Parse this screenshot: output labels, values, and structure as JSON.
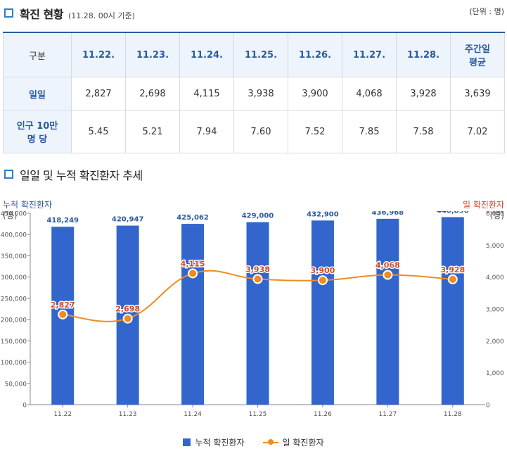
{
  "status": {
    "title": "확진 현황",
    "subtitle": "(11.28. 00시 기준)",
    "unit": "(단위 : 명)",
    "columns": [
      "구분",
      "11.22.",
      "11.23.",
      "11.24.",
      "11.25.",
      "11.26.",
      "11.27.",
      "11.28.",
      "주간일\n평균"
    ],
    "rows": [
      {
        "label": "일일",
        "values": [
          "2,827",
          "2,698",
          "4,115",
          "3,938",
          "3,900",
          "4,068",
          "3,928",
          "3,639"
        ]
      },
      {
        "label": "인구 10만\n명 당",
        "values": [
          "5.45",
          "5.21",
          "7.94",
          "7.60",
          "7.52",
          "7.85",
          "7.58",
          "7.02"
        ]
      }
    ]
  },
  "trend": {
    "title": "일일 및 누적 확진환자 추세"
  },
  "chart_data": {
    "type": "bar",
    "categories": [
      "11.22",
      "11.23",
      "11.24",
      "11.25",
      "11.26",
      "11.27",
      "11.28"
    ],
    "left_axis_label": "누적 확진환자",
    "left_axis_unit": "(명)",
    "right_axis_label": "일 확진환자",
    "right_axis_unit": "(명)",
    "left_ylim": [
      0,
      450000
    ],
    "left_ticks": [
      0,
      50000,
      100000,
      150000,
      200000,
      250000,
      300000,
      350000,
      400000,
      450000
    ],
    "left_tick_labels": [
      "0",
      "50,000",
      "100,000",
      "150,000",
      "200,000",
      "250,000",
      "300,000",
      "350,000",
      "400,000",
      "450,000"
    ],
    "right_ylim": [
      0,
      6000
    ],
    "right_ticks": [
      0,
      1000,
      2000,
      3000,
      4000,
      5000,
      6000
    ],
    "right_tick_labels": [
      "0",
      "1,000",
      "2,000",
      "3,000",
      "4,000",
      "5,000",
      "6,000"
    ],
    "right_top_extra_label": "6,100",
    "series": [
      {
        "name": "누적 확진환자",
        "type": "bar",
        "axis": "left",
        "color": "#3366cc",
        "values": [
          418249,
          420947,
          425062,
          429000,
          432900,
          436968,
          440896
        ],
        "labels": [
          "418,249",
          "420,947",
          "425,062",
          "429,000",
          "432,900",
          "436,968",
          "440,896"
        ]
      },
      {
        "name": "일 확진환자",
        "type": "line",
        "axis": "right",
        "color": "#f08c1e",
        "values": [
          2827,
          2698,
          4115,
          3938,
          3900,
          4068,
          3928
        ],
        "labels": [
          "2,827",
          "2,698",
          "4,115",
          "3,938",
          "3,900",
          "4,068",
          "3,928"
        ]
      }
    ],
    "legend_position": "bottom",
    "grid": false
  }
}
